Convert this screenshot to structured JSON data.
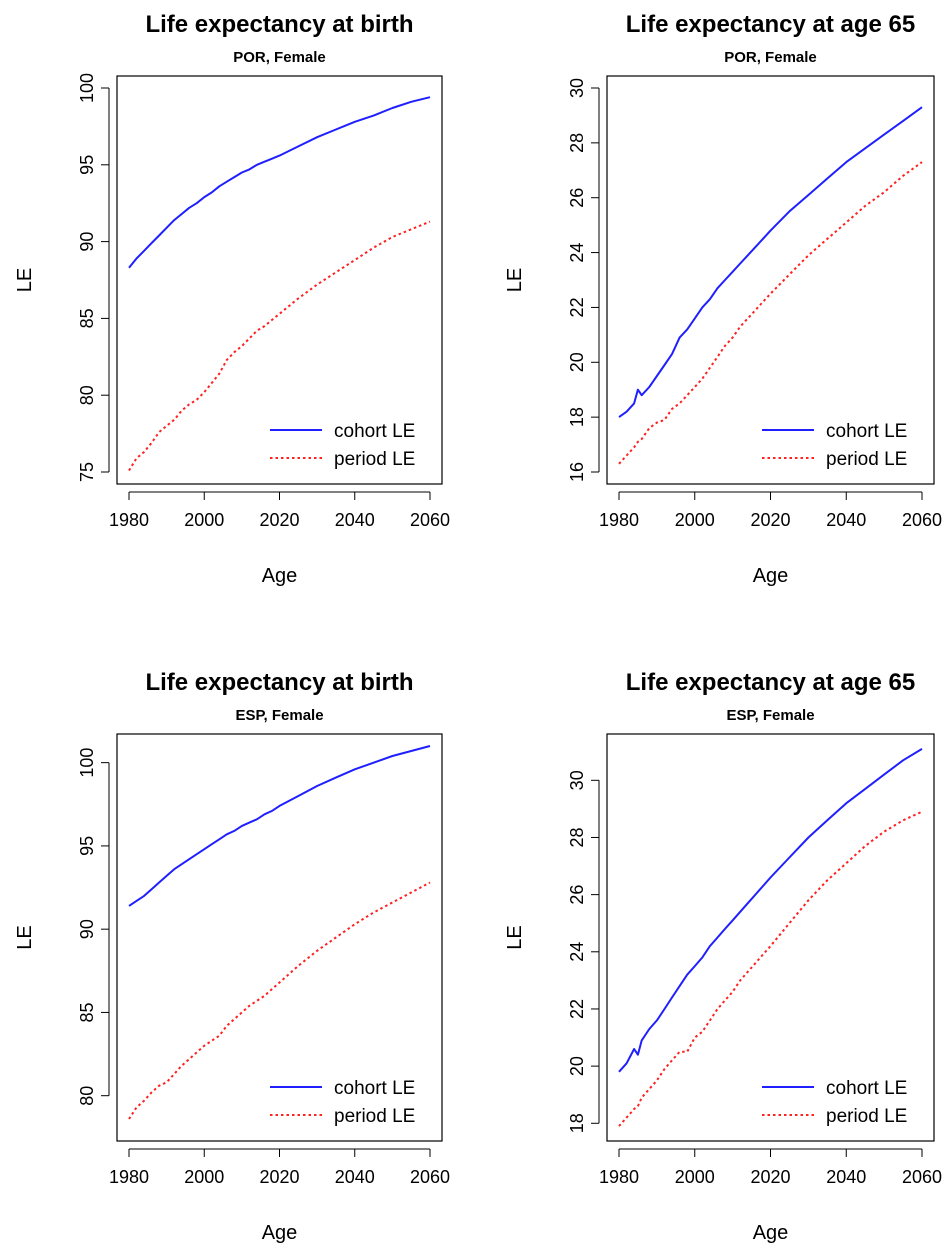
{
  "chart_data": [
    {
      "type": "line",
      "title": "Life expectancy at birth",
      "subtitle": "POR, Female",
      "xlabel": "Age",
      "ylabel": "LE",
      "xlim": [
        1980,
        2060
      ],
      "ylim": [
        75,
        100
      ],
      "xticks": [
        1980,
        2000,
        2020,
        2040,
        2060
      ],
      "yticks": [
        75,
        80,
        85,
        90,
        95,
        100
      ],
      "legend": "bottom-right",
      "grid": false,
      "x": [
        1980,
        1982,
        1984,
        1986,
        1988,
        1990,
        1992,
        1994,
        1996,
        1998,
        2000,
        2002,
        2004,
        2006,
        2008,
        2010,
        2012,
        2014,
        2016,
        2018,
        2020,
        2025,
        2030,
        2035,
        2040,
        2045,
        2050,
        2055,
        2060
      ],
      "series": [
        {
          "name": "cohort LE",
          "color": "#1f1fff",
          "style": "solid",
          "values": [
            88.3,
            88.9,
            89.4,
            89.9,
            90.4,
            90.9,
            91.4,
            91.8,
            92.2,
            92.5,
            92.9,
            93.2,
            93.6,
            93.9,
            94.2,
            94.5,
            94.7,
            95.0,
            95.2,
            95.4,
            95.6,
            96.2,
            96.8,
            97.3,
            97.8,
            98.2,
            98.7,
            99.1,
            99.4
          ]
        },
        {
          "name": "period LE",
          "color": "#ff2020",
          "style": "dotted",
          "values": [
            75.1,
            75.9,
            76.3,
            76.9,
            77.6,
            78.0,
            78.4,
            79.0,
            79.4,
            79.7,
            80.2,
            80.8,
            81.4,
            82.3,
            82.8,
            83.2,
            83.7,
            84.2,
            84.5,
            84.9,
            85.3,
            86.3,
            87.2,
            88.0,
            88.8,
            89.6,
            90.3,
            90.8,
            91.3
          ]
        }
      ]
    },
    {
      "type": "line",
      "title": "Life expectancy at age 65",
      "subtitle": "POR, Female",
      "xlabel": "Age",
      "ylabel": "LE",
      "xlim": [
        1980,
        2060
      ],
      "ylim": [
        16,
        30
      ],
      "xticks": [
        1980,
        2000,
        2020,
        2040,
        2060
      ],
      "yticks": [
        16,
        18,
        20,
        22,
        24,
        26,
        28,
        30
      ],
      "legend": "bottom-right",
      "grid": false,
      "x": [
        1980,
        1982,
        1984,
        1985,
        1986,
        1988,
        1990,
        1992,
        1994,
        1996,
        1998,
        2000,
        2002,
        2004,
        2006,
        2008,
        2010,
        2012,
        2014,
        2016,
        2018,
        2020,
        2025,
        2030,
        2035,
        2040,
        2045,
        2050,
        2055,
        2060
      ],
      "series": [
        {
          "name": "cohort LE",
          "color": "#1f1fff",
          "style": "solid",
          "values": [
            18.0,
            18.2,
            18.5,
            19.0,
            18.8,
            19.1,
            19.5,
            19.9,
            20.3,
            20.9,
            21.2,
            21.6,
            22.0,
            22.3,
            22.7,
            23.0,
            23.3,
            23.6,
            23.9,
            24.2,
            24.5,
            24.8,
            25.5,
            26.1,
            26.7,
            27.3,
            27.8,
            28.3,
            28.8,
            29.3
          ]
        },
        {
          "name": "period LE",
          "color": "#ff2020",
          "style": "dotted",
          "values": [
            16.3,
            16.6,
            16.9,
            17.1,
            17.2,
            17.6,
            17.8,
            17.9,
            18.3,
            18.5,
            18.8,
            19.1,
            19.4,
            19.8,
            20.2,
            20.6,
            20.9,
            21.3,
            21.6,
            21.9,
            22.2,
            22.5,
            23.2,
            23.9,
            24.5,
            25.1,
            25.7,
            26.2,
            26.8,
            27.3
          ]
        }
      ]
    },
    {
      "type": "line",
      "title": "Life expectancy at birth",
      "subtitle": "ESP, Female",
      "xlabel": "Age",
      "ylabel": "LE",
      "xlim": [
        1980,
        2060
      ],
      "ylim": [
        78,
        101
      ],
      "xticks": [
        1980,
        2000,
        2020,
        2040,
        2060
      ],
      "yticks": [
        80,
        85,
        90,
        95,
        100
      ],
      "legend": "bottom-right",
      "grid": false,
      "x": [
        1980,
        1982,
        1984,
        1986,
        1988,
        1990,
        1992,
        1994,
        1996,
        1998,
        2000,
        2002,
        2004,
        2006,
        2008,
        2010,
        2012,
        2014,
        2016,
        2018,
        2020,
        2025,
        2030,
        2035,
        2040,
        2045,
        2050,
        2055,
        2060
      ],
      "series": [
        {
          "name": "cohort LE",
          "color": "#1f1fff",
          "style": "solid",
          "values": [
            91.4,
            91.7,
            92.0,
            92.4,
            92.8,
            93.2,
            93.6,
            93.9,
            94.2,
            94.5,
            94.8,
            95.1,
            95.4,
            95.7,
            95.9,
            96.2,
            96.4,
            96.6,
            96.9,
            97.1,
            97.4,
            98.0,
            98.6,
            99.1,
            99.6,
            100.0,
            100.4,
            100.7,
            101.0
          ]
        },
        {
          "name": "period LE",
          "color": "#ff2020",
          "style": "dotted",
          "values": [
            78.6,
            79.3,
            79.7,
            80.2,
            80.6,
            80.8,
            81.3,
            81.8,
            82.2,
            82.6,
            83.0,
            83.3,
            83.6,
            84.2,
            84.6,
            85.0,
            85.4,
            85.7,
            86.0,
            86.4,
            86.8,
            87.8,
            88.7,
            89.5,
            90.3,
            91.0,
            91.6,
            92.2,
            92.8
          ]
        }
      ]
    },
    {
      "type": "line",
      "title": "Life expectancy at age 65",
      "subtitle": "ESP, Female",
      "xlabel": "Age",
      "ylabel": "LE",
      "xlim": [
        1980,
        2060
      ],
      "ylim": [
        17.8,
        31.2
      ],
      "xticks": [
        1980,
        2000,
        2020,
        2040,
        2060
      ],
      "yticks": [
        18,
        20,
        22,
        24,
        26,
        28,
        30
      ],
      "legend": "bottom-right",
      "grid": false,
      "x": [
        1980,
        1982,
        1984,
        1985,
        1986,
        1988,
        1990,
        1992,
        1994,
        1996,
        1998,
        2000,
        2002,
        2004,
        2006,
        2008,
        2010,
        2012,
        2014,
        2016,
        2018,
        2020,
        2025,
        2030,
        2035,
        2040,
        2045,
        2050,
        2055,
        2060
      ],
      "series": [
        {
          "name": "cohort LE",
          "color": "#1f1fff",
          "style": "solid",
          "values": [
            19.8,
            20.1,
            20.6,
            20.4,
            20.9,
            21.3,
            21.6,
            22.0,
            22.4,
            22.8,
            23.2,
            23.5,
            23.8,
            24.2,
            24.5,
            24.8,
            25.1,
            25.4,
            25.7,
            26.0,
            26.3,
            26.6,
            27.3,
            28.0,
            28.6,
            29.2,
            29.7,
            30.2,
            30.7,
            31.1
          ]
        },
        {
          "name": "period LE",
          "color": "#ff2020",
          "style": "dotted",
          "values": [
            17.9,
            18.2,
            18.5,
            18.6,
            18.9,
            19.2,
            19.5,
            19.9,
            20.2,
            20.5,
            20.5,
            21.0,
            21.2,
            21.6,
            22.0,
            22.3,
            22.6,
            23.0,
            23.3,
            23.6,
            23.9,
            24.2,
            25.0,
            25.8,
            26.5,
            27.1,
            27.7,
            28.2,
            28.6,
            28.9
          ]
        }
      ]
    }
  ]
}
